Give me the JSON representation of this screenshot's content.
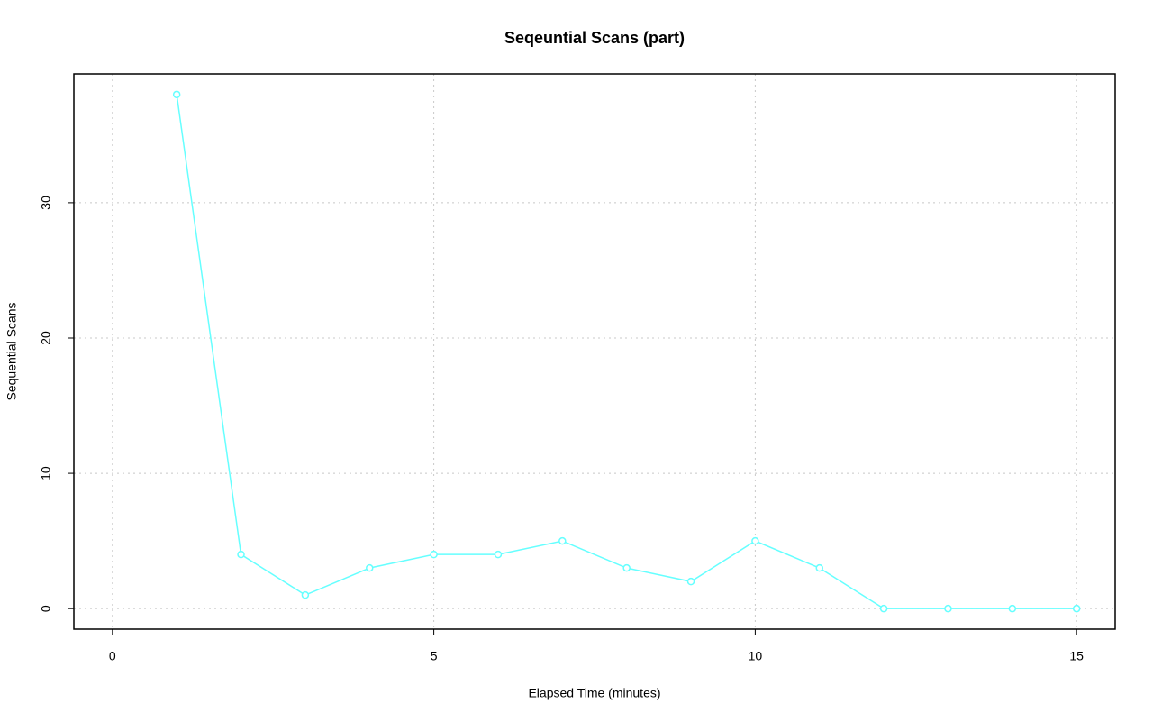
{
  "chart_data": {
    "type": "line",
    "title": "Seqeuntial Scans (part)",
    "x_label": "Elapsed Time (minutes)",
    "y_label": "Sequential Scans",
    "x": [
      1,
      2,
      3,
      4,
      5,
      6,
      7,
      8,
      9,
      10,
      11,
      12,
      13,
      14,
      15
    ],
    "series": [
      {
        "name": "Sequential Scans",
        "color": "#66ffff",
        "values": [
          38,
          4,
          1,
          3,
          4,
          4,
          5,
          3,
          2,
          5,
          3,
          0,
          0,
          0,
          0
        ]
      }
    ],
    "xlim": [
      -0.6,
      15.6
    ],
    "xticks": [
      0,
      5,
      10,
      15
    ],
    "ylim": [
      -1.52,
      39.52
    ],
    "yticks": [
      0,
      10,
      20,
      30
    ],
    "grid": true
  }
}
